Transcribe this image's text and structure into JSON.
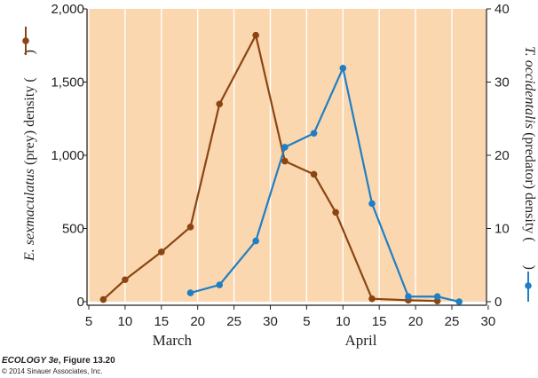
{
  "caption": {
    "book": "ECOLOGY 3e",
    "figure": ", Figure 13.20",
    "copyright": "© 2014 Sinauer Associates, Inc."
  },
  "colors": {
    "background": "#fbd7b0",
    "grid": "#ffffff",
    "prey": "#8b4513",
    "predator": "#1f7fc4",
    "axis": "#231f20"
  },
  "chart_data": {
    "type": "line",
    "x_ticks": [
      "5",
      "10",
      "15",
      "20",
      "25",
      "30",
      "5",
      "10",
      "15",
      "20",
      "25",
      "30"
    ],
    "months": [
      {
        "label": "March"
      },
      {
        "label": "April"
      }
    ],
    "y_left": {
      "label_species": "E. sexmaculatus",
      "label_rest": " (prey) density (",
      "label_end": ")",
      "ticks": [
        "0",
        "500",
        "1,000",
        "1,500",
        "2,000"
      ],
      "ylim": [
        0,
        2000
      ]
    },
    "y_right": {
      "label_species": "T. occidentalis",
      "label_rest": " (predator) density (",
      "label_end": ")",
      "ticks": [
        "0",
        "10",
        "20",
        "30",
        "40"
      ],
      "ylim": [
        0,
        40
      ]
    },
    "series": [
      {
        "axis": "left",
        "color": "#8b4513",
        "points": [
          {
            "date": "March 7",
            "value": 15
          },
          {
            "date": "March 10",
            "value": 150
          },
          {
            "date": "March 15",
            "value": 340
          },
          {
            "date": "March 19",
            "value": 510
          },
          {
            "date": "March 23",
            "value": 1350
          },
          {
            "date": "March 28",
            "value": 1820
          },
          {
            "date": "April 1",
            "value": 960
          },
          {
            "date": "April 5",
            "value": 870
          },
          {
            "date": "April 8",
            "value": 610
          },
          {
            "date": "April 13",
            "value": 20
          },
          {
            "date": "April 18",
            "value": 10
          },
          {
            "date": "April 22",
            "value": 5
          }
        ]
      },
      {
        "axis": "right",
        "color": "#1f7fc4",
        "points": [
          {
            "date": "March 19",
            "value": 1.2
          },
          {
            "date": "March 23",
            "value": 2.3
          },
          {
            "date": "March 28",
            "value": 8.3
          },
          {
            "date": "April 1",
            "value": 21.1
          },
          {
            "date": "April 5",
            "value": 23.0
          },
          {
            "date": "April 9",
            "value": 31.9
          },
          {
            "date": "April 13",
            "value": 13.4
          },
          {
            "date": "April 18",
            "value": 0.7
          },
          {
            "date": "April 22",
            "value": 0.7
          },
          {
            "date": "April 25",
            "value": 0
          }
        ]
      }
    ]
  }
}
